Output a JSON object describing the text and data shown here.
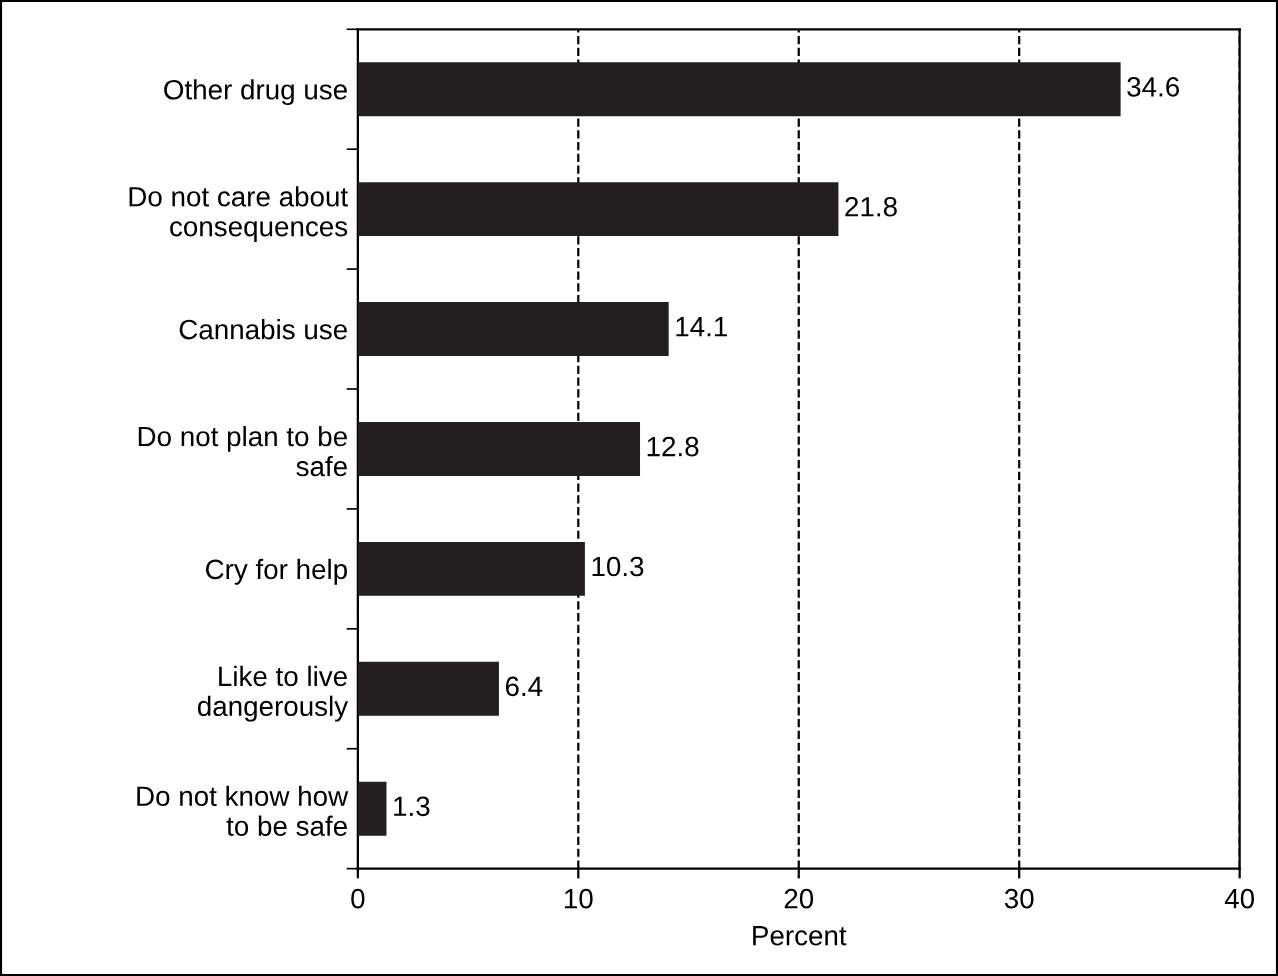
{
  "chart_data": {
    "type": "bar",
    "orientation": "horizontal",
    "xlabel": "Percent",
    "categories": [
      "Other drug use",
      "Do not care about\nconsequences",
      "Cannabis use",
      "Do not plan to be\nsafe",
      "Cry for help",
      "Like to live\ndangerously",
      "Do not know how\nto be safe"
    ],
    "values": [
      34.6,
      21.8,
      14.1,
      12.8,
      10.3,
      6.4,
      1.3
    ],
    "color": "#231f20",
    "xlim": [
      0,
      40
    ],
    "xticks": [
      0,
      10,
      20,
      30,
      40
    ],
    "grid": "x",
    "data_labels": true,
    "legend": false
  }
}
